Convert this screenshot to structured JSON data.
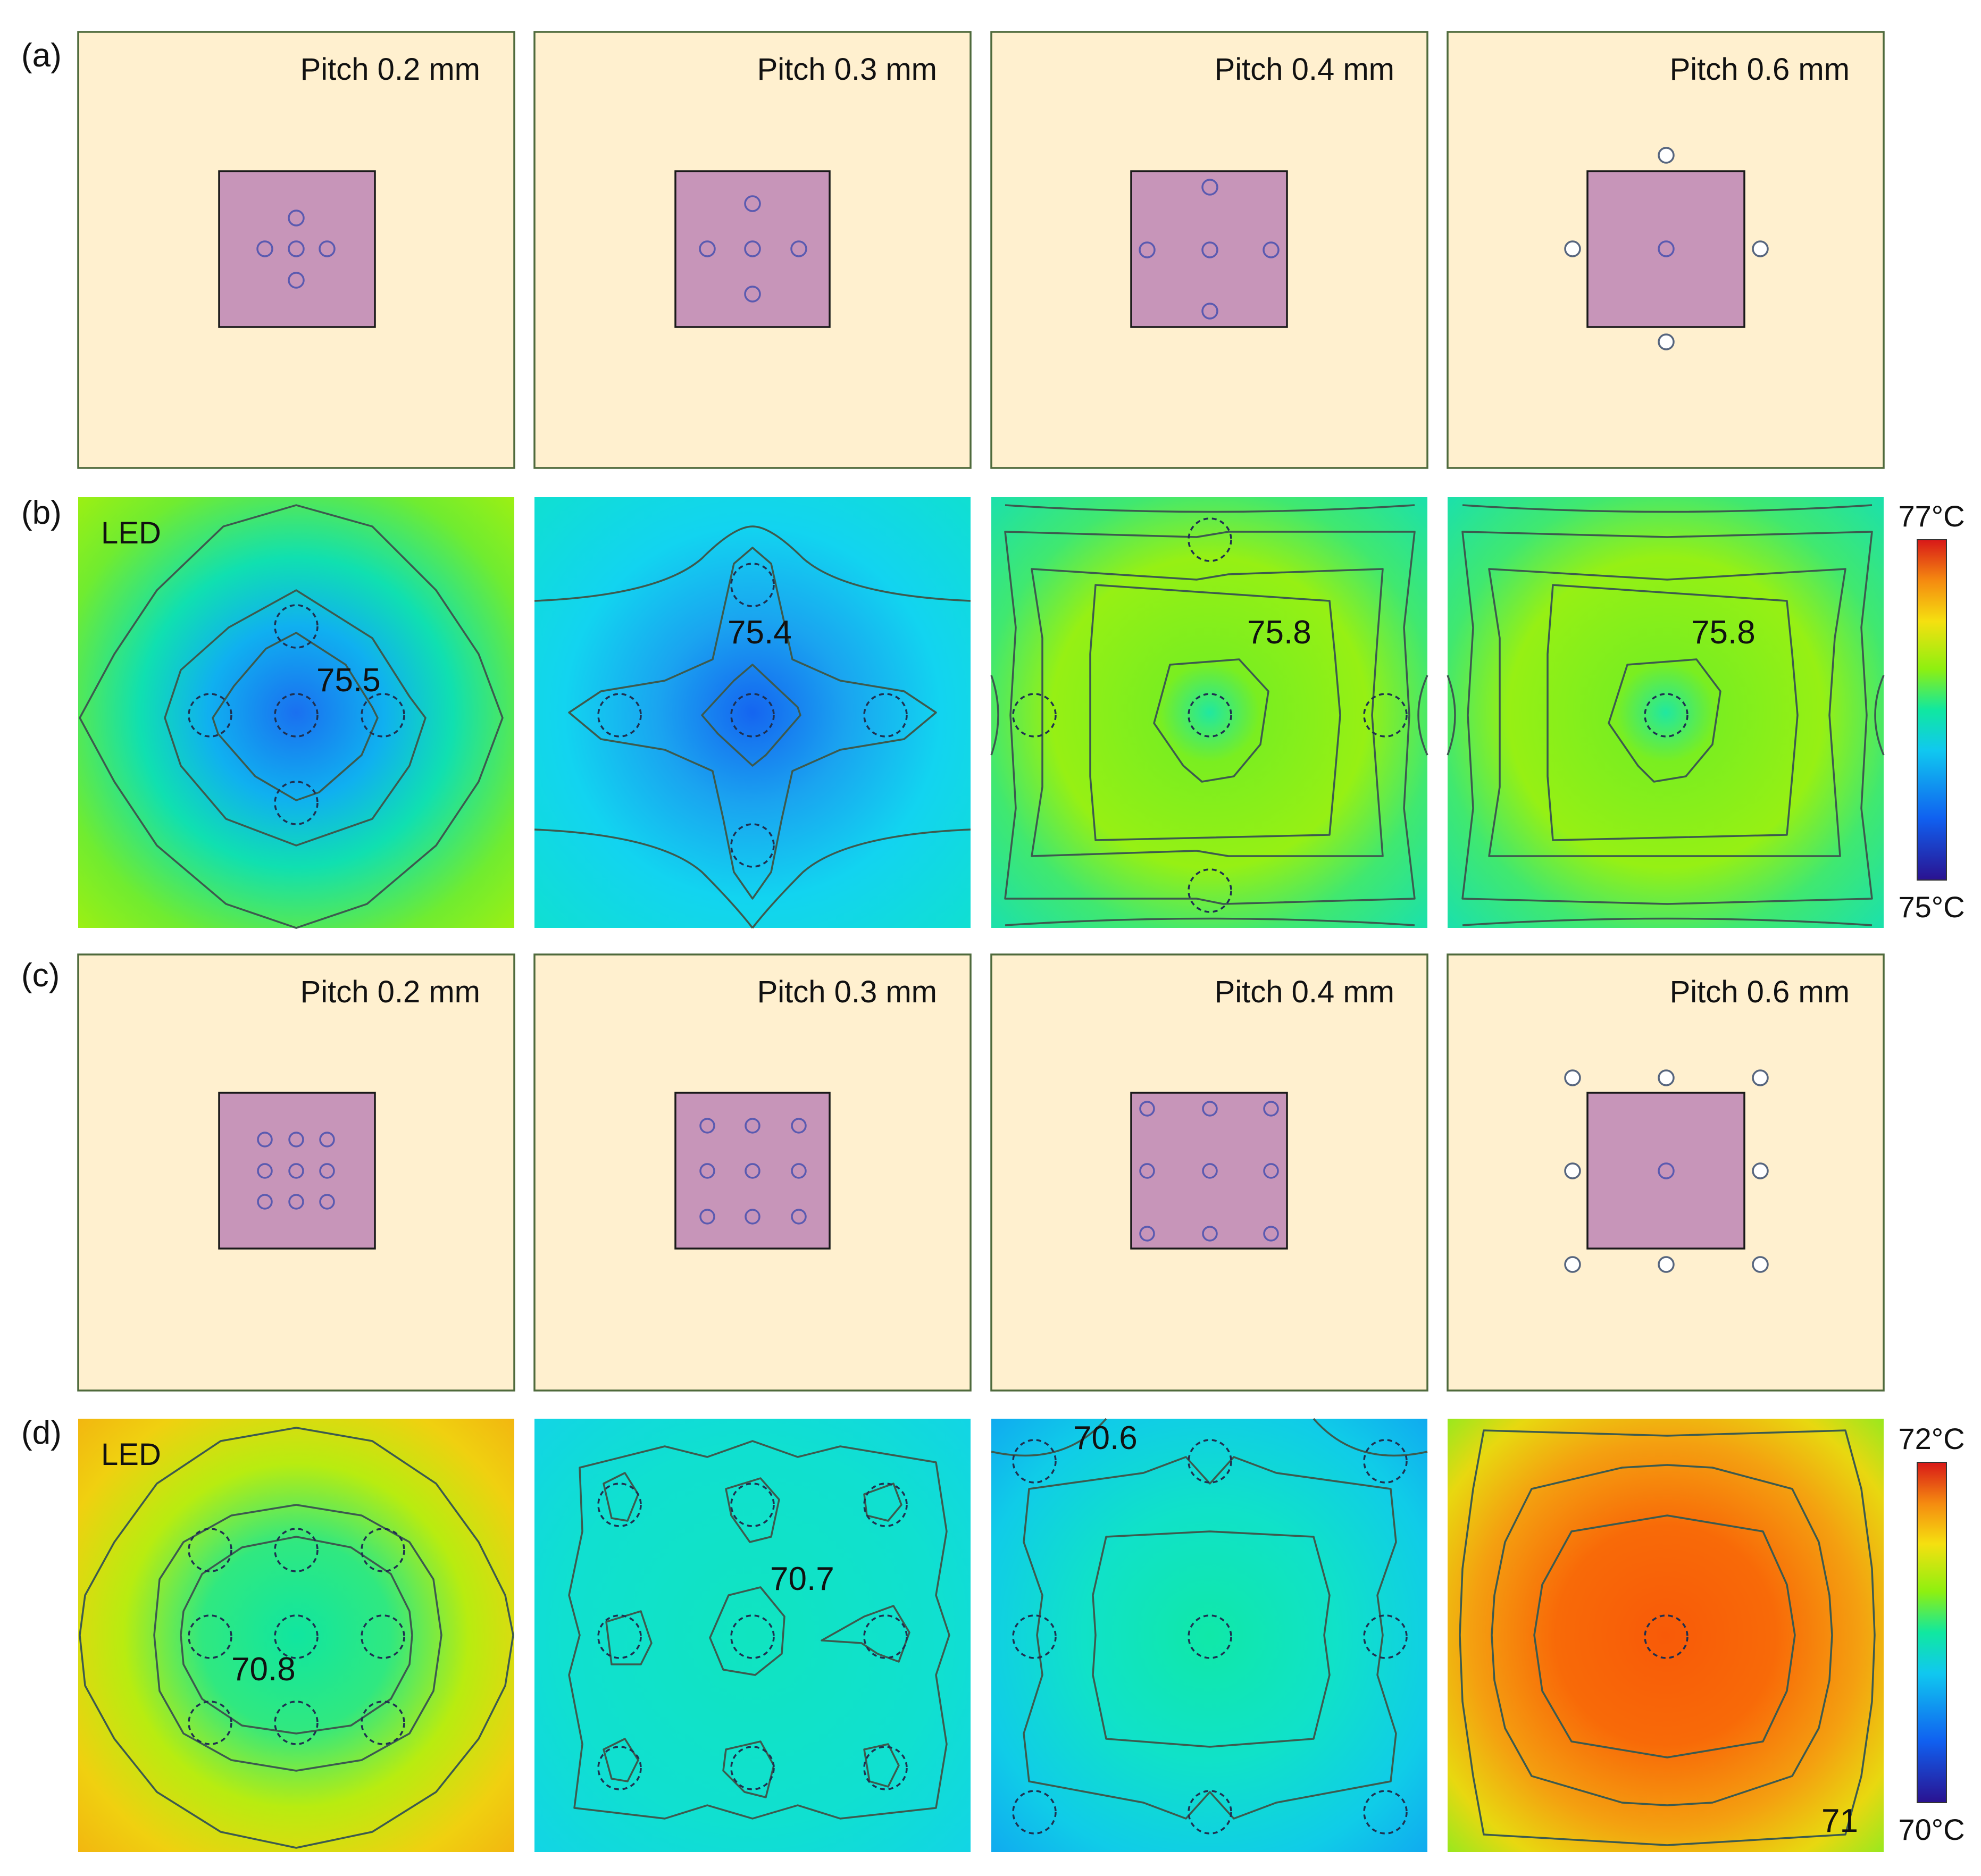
{
  "figure": {
    "row_labels": [
      "(a)",
      "(b)",
      "(c)",
      "(d)"
    ],
    "led_label": "LED",
    "layouts_a": [
      {
        "pitch_label": "Pitch 0.2 mm",
        "via_pattern": "cross",
        "pitch_mm": 0.2
      },
      {
        "pitch_label": "Pitch 0.3 mm",
        "via_pattern": "cross",
        "pitch_mm": 0.3
      },
      {
        "pitch_label": "Pitch 0.4 mm",
        "via_pattern": "cross",
        "pitch_mm": 0.4
      },
      {
        "pitch_label": "Pitch 0.6 mm",
        "via_pattern": "cross",
        "pitch_mm": 0.6
      }
    ],
    "thermal_b": [
      {
        "peak_label": "75.5",
        "scale_position": 0.45
      },
      {
        "peak_label": "75.4",
        "scale_position": 0.28
      },
      {
        "peak_label": "75.8",
        "scale_position": 0.6
      },
      {
        "peak_label": "75.8",
        "scale_position": 0.6
      }
    ],
    "layouts_c": [
      {
        "pitch_label": "Pitch 0.2 mm",
        "via_pattern": "3x3 grid",
        "pitch_mm": 0.2
      },
      {
        "pitch_label": "Pitch 0.3 mm",
        "via_pattern": "3x3 grid",
        "pitch_mm": 0.3
      },
      {
        "pitch_label": "Pitch 0.4 mm",
        "via_pattern": "3x3 grid",
        "pitch_mm": 0.4
      },
      {
        "pitch_label": "Pitch 0.6 mm",
        "via_pattern": "3x3 grid",
        "pitch_mm": 0.6
      }
    ],
    "thermal_d": [
      {
        "peak_label": "70.8",
        "scale_position": 0.6
      },
      {
        "peak_label": "70.7",
        "scale_position": 0.42
      },
      {
        "peak_label": "70.6",
        "scale_position": 0.35
      },
      {
        "peak_label": "71",
        "scale_position": 0.85
      }
    ],
    "colorbar_b": {
      "max_label": "77°C",
      "min_label": "75°C",
      "min_value": 75,
      "max_value": 77
    },
    "colorbar_d": {
      "max_label": "72°C",
      "min_label": "70°C",
      "min_value": 70,
      "max_value": 72
    },
    "colors": {
      "substrate": "#fff0cf",
      "chip": "#c795b9",
      "scale": [
        "#2a1290",
        "#1060f0",
        "#10c8f0",
        "#10e8a0",
        "#8ef010",
        "#f5e010",
        "#f58a10",
        "#d81818"
      ]
    }
  }
}
